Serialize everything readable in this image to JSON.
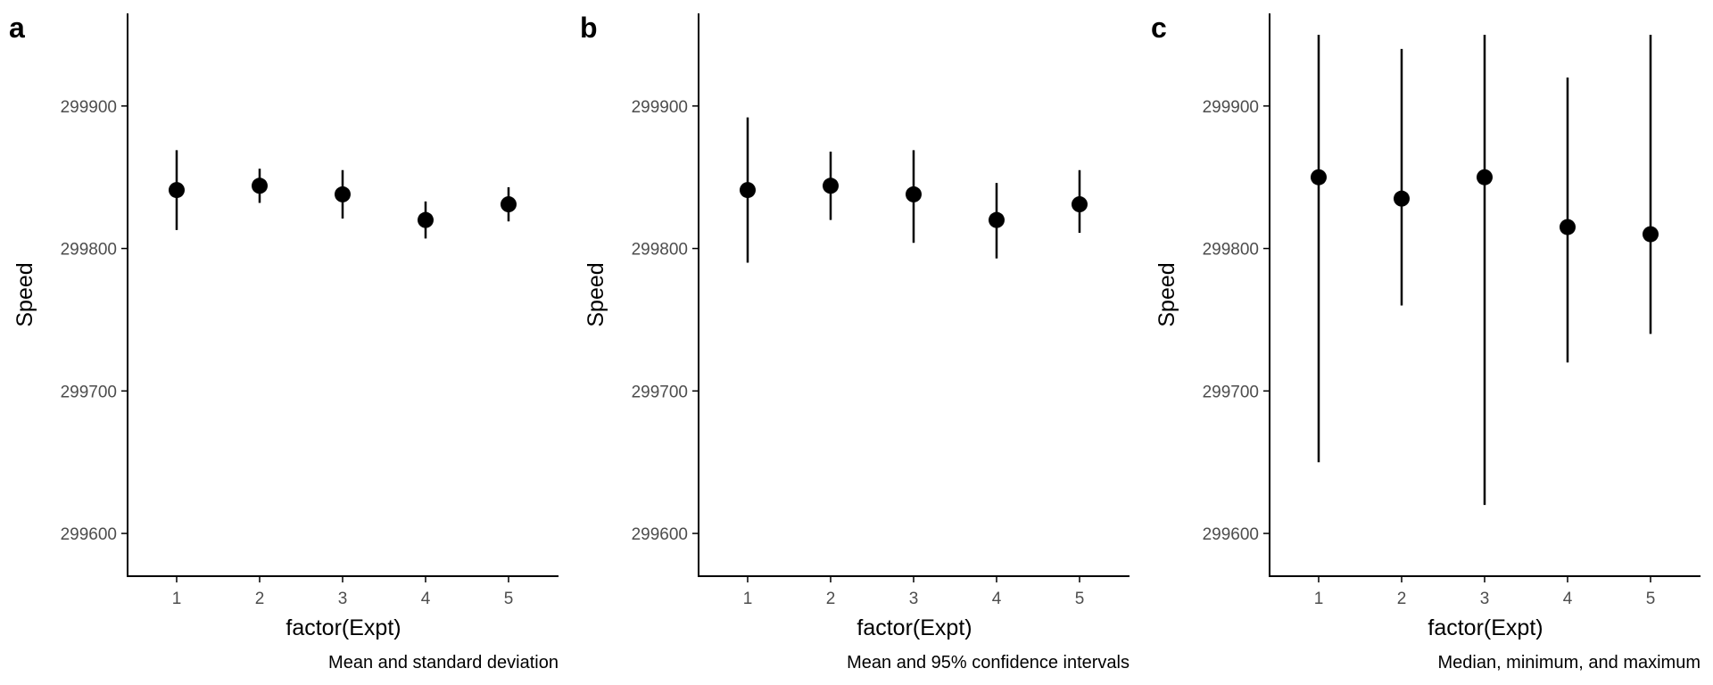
{
  "chart_data": [
    {
      "type": "scatter",
      "tag": "a",
      "caption": "Mean and standard deviation",
      "xlabel": "factor(Expt)",
      "ylabel": "Speed",
      "categories": [
        "1",
        "2",
        "3",
        "4",
        "5"
      ],
      "ylim": [
        299570,
        299965
      ],
      "yticks": [
        299600,
        299700,
        299800,
        299900
      ],
      "values": [
        299841,
        299844,
        299838,
        299820,
        299831
      ],
      "lower": [
        299813,
        299832,
        299821,
        299807,
        299819
      ],
      "upper": [
        299869,
        299856,
        299855,
        299833,
        299843
      ],
      "grid": false
    },
    {
      "type": "scatter",
      "tag": "b",
      "caption": "Mean and 95% confidence intervals",
      "xlabel": "factor(Expt)",
      "ylabel": "Speed",
      "categories": [
        "1",
        "2",
        "3",
        "4",
        "5"
      ],
      "ylim": [
        299570,
        299965
      ],
      "yticks": [
        299600,
        299700,
        299800,
        299900
      ],
      "values": [
        299841,
        299844,
        299838,
        299820,
        299831
      ],
      "lower": [
        299790,
        299820,
        299804,
        299793,
        299811
      ],
      "upper": [
        299892,
        299868,
        299869,
        299846,
        299855
      ],
      "grid": false
    },
    {
      "type": "scatter",
      "tag": "c",
      "caption": "Median, minimum, and maximum",
      "xlabel": "factor(Expt)",
      "ylabel": "Speed",
      "categories": [
        "1",
        "2",
        "3",
        "4",
        "5"
      ],
      "ylim": [
        299570,
        299965
      ],
      "yticks": [
        299600,
        299700,
        299800,
        299900
      ],
      "values": [
        299850,
        299835,
        299850,
        299815,
        299810
      ],
      "lower": [
        299650,
        299760,
        299620,
        299720,
        299740
      ],
      "upper": [
        299950,
        299940,
        299950,
        299920,
        299950
      ],
      "grid": false
    }
  ]
}
